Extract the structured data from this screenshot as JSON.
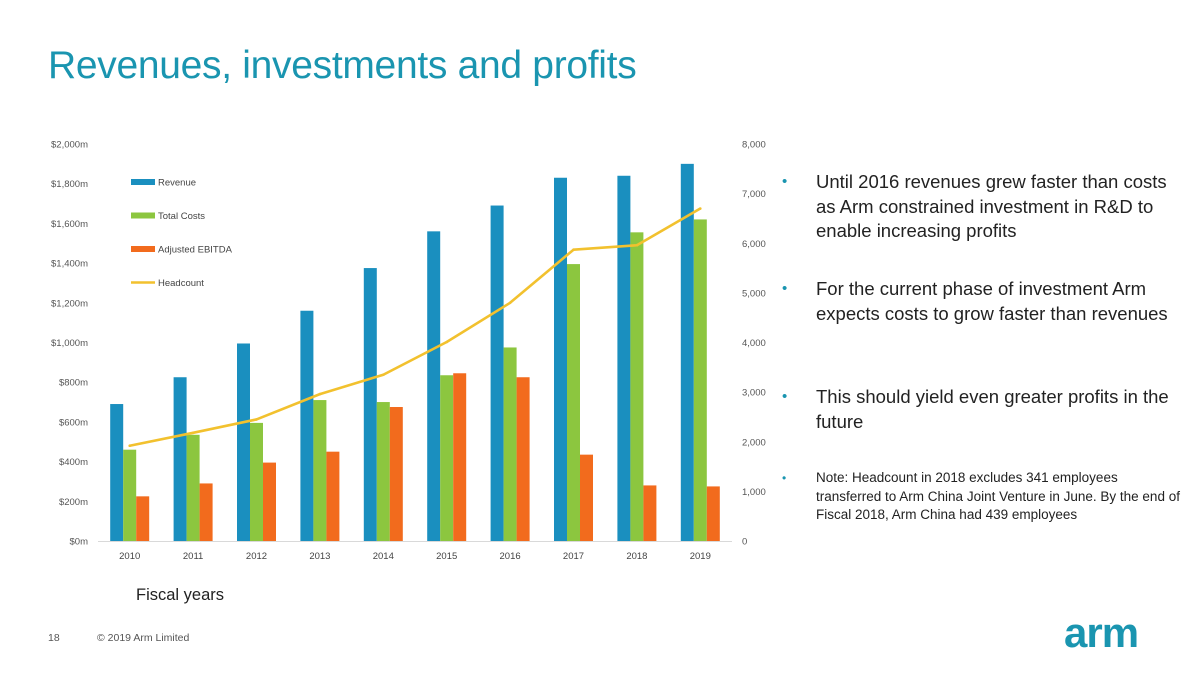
{
  "slide": {
    "title": "Revenues, investments and profits",
    "page_number": "18",
    "copyright": "© 2019 Arm Limited",
    "logo_text": "arm",
    "x_axis_caption": "Fiscal years"
  },
  "bullets": [
    {
      "text": "Until 2016 revenues grew faster than costs as Arm constrained investment in R&D to enable increasing profits"
    },
    {
      "text": "For the current phase of investment Arm expects costs to grow faster than revenues"
    },
    {
      "text": "This should yield even greater profits in the future"
    },
    {
      "text": "Note: Headcount in 2018 excludes 341 employees transferred to Arm China Joint Venture in June. By the end of Fiscal 2018, Arm China had 439 employees"
    }
  ],
  "colors": {
    "revenue": "#1a8fbf",
    "total_costs": "#8cc63f",
    "adjusted_ebitda": "#f26b1d",
    "headcount": "#f2c12e",
    "accent": "#1a95b0"
  },
  "chart_data": {
    "type": "bar",
    "categories": [
      "2010",
      "2011",
      "2012",
      "2013",
      "2014",
      "2015",
      "2016",
      "2017",
      "2018",
      "2019"
    ],
    "series": [
      {
        "name": "Revenue",
        "type": "bar",
        "axis": "left",
        "values": [
          690,
          825,
          995,
          1160,
          1375,
          1560,
          1690,
          1830,
          1840,
          1900
        ]
      },
      {
        "name": "Total Costs",
        "type": "bar",
        "axis": "left",
        "values": [
          460,
          535,
          595,
          710,
          700,
          835,
          975,
          1395,
          1555,
          1620
        ]
      },
      {
        "name": "Adjusted EBITDA",
        "type": "bar",
        "axis": "left",
        "values": [
          225,
          290,
          395,
          450,
          675,
          845,
          825,
          435,
          280,
          275
        ]
      },
      {
        "name": "Headcount",
        "type": "line",
        "axis": "right",
        "values": [
          1920,
          2180,
          2450,
          2960,
          3350,
          4010,
          4800,
          5870,
          5960,
          6700
        ]
      }
    ],
    "left_axis": {
      "min": 0,
      "max": 2000,
      "ticks": [
        0,
        200,
        400,
        600,
        800,
        1000,
        1200,
        1400,
        1600,
        1800,
        2000
      ],
      "tick_labels": [
        "$0m",
        "$200m",
        "$400m",
        "$600m",
        "$800m",
        "$1,000m",
        "$1,200m",
        "$1,400m",
        "$1,600m",
        "$1,800m",
        "$2,000m"
      ]
    },
    "right_axis": {
      "min": 0,
      "max": 8000,
      "ticks": [
        0,
        1000,
        2000,
        3000,
        4000,
        5000,
        6000,
        7000,
        8000
      ],
      "tick_labels": [
        "0",
        "1,000",
        "2,000",
        "3,000",
        "4,000",
        "5,000",
        "6,000",
        "7,000",
        "8,000"
      ]
    },
    "xlabel": "Fiscal years",
    "legend": {
      "placement": "top-left",
      "entries": [
        "Revenue",
        "Total Costs",
        "Adjusted EBITDA",
        "Headcount"
      ]
    },
    "grid": false
  }
}
